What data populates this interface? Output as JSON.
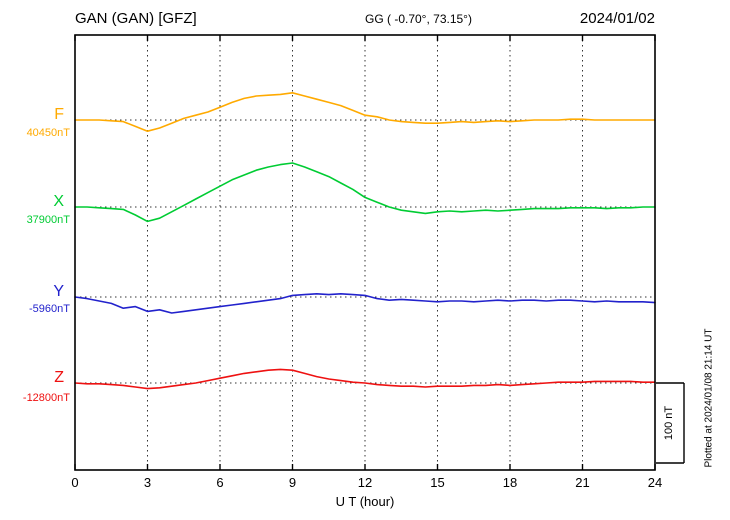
{
  "header": {
    "station": "GAN (GAN)  [GFZ]",
    "coords": "GG ( -0.70°,  73.15°)",
    "date": "2024/01/02"
  },
  "axis": {
    "xlabel": "U T (hour)",
    "ticks": [
      "0",
      "3",
      "6",
      "9",
      "12",
      "15",
      "18",
      "21",
      "24"
    ]
  },
  "scalebar": {
    "label": "100 nT"
  },
  "footer": {
    "plotted": "Plotted at 2024/01/08 21:14 UT"
  },
  "chart_data": {
    "type": "line",
    "title": "GAN (GAN) [GFZ] magnetogram 2024/01/02",
    "xlabel": "U T (hour)",
    "x_range": [
      0,
      24
    ],
    "x_ticks": [
      0,
      3,
      6,
      9,
      12,
      15,
      18,
      21,
      24
    ],
    "x_step_hours": 0.5,
    "grid": "dotted vertical gridlines every 3 h; dotted horizontal baseline per component",
    "scale_bar_nT": 100,
    "series": [
      {
        "name": "F",
        "color": "#ffaa00",
        "baseline_label": "40450nT",
        "baseline_nT": 40450,
        "offsets_nT": [
          0,
          0,
          0,
          -1,
          -2,
          -8,
          -14,
          -10,
          -4,
          2,
          6,
          10,
          16,
          22,
          27,
          30,
          31,
          32,
          34,
          30,
          26,
          22,
          18,
          12,
          6,
          4,
          0,
          -2,
          -3,
          -4,
          -4,
          -3,
          -2,
          -3,
          -2,
          -1,
          -2,
          -1,
          0,
          0,
          0,
          1,
          1,
          0,
          0,
          0,
          0,
          0,
          0
        ]
      },
      {
        "name": "X",
        "color": "#00cc33",
        "baseline_label": "37900nT",
        "baseline_nT": 37900,
        "offsets_nT": [
          0,
          0,
          -1,
          -2,
          -3,
          -10,
          -18,
          -14,
          -6,
          2,
          10,
          18,
          26,
          34,
          40,
          46,
          50,
          53,
          55,
          50,
          44,
          38,
          30,
          22,
          12,
          6,
          0,
          -4,
          -6,
          -8,
          -6,
          -5,
          -6,
          -5,
          -4,
          -5,
          -4,
          -3,
          -2,
          -2,
          -2,
          -1,
          -1,
          -1,
          -2,
          -1,
          -1,
          0,
          0
        ]
      },
      {
        "name": "Y",
        "color": "#2222cc",
        "baseline_label": "-5960nT",
        "baseline_nT": -5960,
        "offsets_nT": [
          0,
          -2,
          -5,
          -8,
          -14,
          -12,
          -18,
          -16,
          -20,
          -18,
          -16,
          -14,
          -12,
          -10,
          -8,
          -6,
          -4,
          -2,
          2,
          3,
          4,
          3,
          4,
          3,
          2,
          -2,
          -4,
          -3,
          -4,
          -5,
          -6,
          -5,
          -5,
          -6,
          -5,
          -4,
          -5,
          -4,
          -4,
          -5,
          -4,
          -4,
          -5,
          -6,
          -5,
          -6,
          -6,
          -6,
          -7
        ]
      },
      {
        "name": "Z",
        "color": "#ee1111",
        "baseline_label": "-12800nT",
        "baseline_nT": -12800,
        "offsets_nT": [
          0,
          -1,
          -1,
          -2,
          -3,
          -5,
          -7,
          -6,
          -4,
          -2,
          0,
          3,
          6,
          9,
          12,
          14,
          16,
          17,
          16,
          12,
          8,
          5,
          3,
          1,
          0,
          -2,
          -3,
          -4,
          -4,
          -5,
          -4,
          -4,
          -4,
          -3,
          -3,
          -2,
          -3,
          -2,
          -1,
          0,
          1,
          1,
          1,
          2,
          2,
          2,
          2,
          1,
          1
        ]
      }
    ]
  }
}
